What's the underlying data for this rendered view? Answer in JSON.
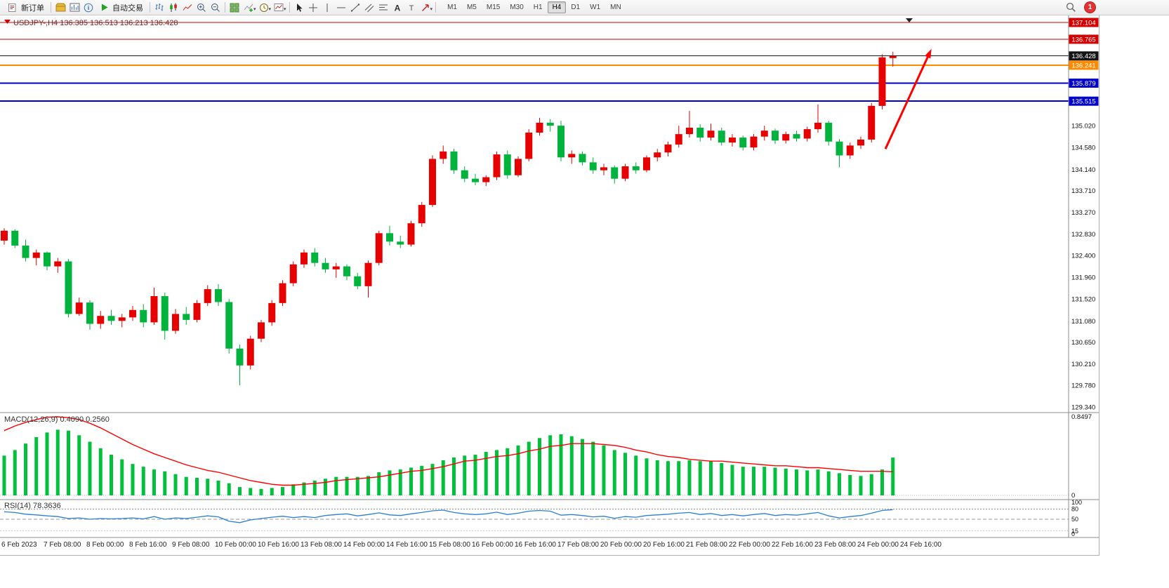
{
  "toolbar": {
    "new_order": "新订单",
    "auto_trading": "自动交易",
    "timeframes": [
      "M1",
      "M5",
      "M15",
      "M30",
      "H1",
      "H4",
      "D1",
      "W1",
      "MN"
    ],
    "active_timeframe": "H4",
    "notification_count": "1"
  },
  "chart_data": {
    "type": "candlestick",
    "symbol": "USDJPY-",
    "timeframe": "H4",
    "title_symbol": "USDJPY-,H4",
    "title_ohlc": "136.385 136.513 136.213 136.428",
    "bull_color": "#e60000",
    "bear_color": "#00b33c",
    "levels": [
      {
        "price": 137.104,
        "label": "137.104",
        "color": "#d40000",
        "width": 1
      },
      {
        "price": 136.765,
        "label": "136.765",
        "color": "#d40000",
        "width": 1
      },
      {
        "price": 136.428,
        "label": "136.428",
        "color": "#141414",
        "width": 1,
        "role": "current-price"
      },
      {
        "price": 136.241,
        "label": "136.241",
        "color": "#ff8a00",
        "width": 2
      },
      {
        "price": 135.879,
        "label": "135.879",
        "color": "#0000cc",
        "width": 2
      },
      {
        "price": 135.515,
        "label": "135.515",
        "color": "#0000cc",
        "width": 2
      }
    ],
    "price_axis_ticks": [
      "135.020",
      "134.580",
      "134.140",
      "133.710",
      "133.270",
      "132.830",
      "132.400",
      "131.960",
      "131.520",
      "131.080",
      "130.650",
      "130.210",
      "129.780",
      "129.340"
    ],
    "time_labels": [
      "6 Feb 2023",
      "7 Feb 08:00",
      "8 Feb 00:00",
      "8 Feb 16:00",
      "9 Feb 08:00",
      "10 Feb 00:00",
      "10 Feb 16:00",
      "13 Feb 08:00",
      "14 Feb 00:00",
      "14 Feb 16:00",
      "15 Feb 08:00",
      "16 Feb 00:00",
      "16 Feb 16:00",
      "17 Feb 08:00",
      "20 Feb 00:00",
      "20 Feb 16:00",
      "21 Feb 08:00",
      "22 Feb 00:00",
      "22 Feb 16:00",
      "23 Feb 08:00",
      "24 Feb 00:00",
      "24 Feb 16:00"
    ],
    "candles": [
      [
        132.7,
        132.95,
        132.62,
        132.9
      ],
      [
        132.9,
        132.93,
        132.55,
        132.6
      ],
      [
        132.6,
        132.72,
        132.28,
        132.35
      ],
      [
        132.35,
        132.52,
        132.2,
        132.46
      ],
      [
        132.46,
        132.48,
        132.1,
        132.18
      ],
      [
        132.18,
        132.35,
        132.05,
        132.28
      ],
      [
        132.28,
        132.33,
        131.15,
        131.22
      ],
      [
        131.22,
        131.55,
        131.18,
        131.45
      ],
      [
        131.45,
        131.5,
        130.9,
        131.02
      ],
      [
        131.02,
        131.28,
        130.92,
        131.18
      ],
      [
        131.18,
        131.3,
        131.0,
        131.08
      ],
      [
        131.08,
        131.22,
        130.95,
        131.15
      ],
      [
        131.15,
        131.38,
        131.08,
        131.3
      ],
      [
        131.3,
        131.42,
        130.95,
        131.05
      ],
      [
        131.05,
        131.75,
        131.0,
        131.58
      ],
      [
        131.58,
        131.65,
        130.7,
        130.88
      ],
      [
        130.88,
        131.32,
        130.82,
        131.22
      ],
      [
        131.22,
        131.36,
        131.0,
        131.1
      ],
      [
        131.1,
        131.5,
        131.05,
        131.44
      ],
      [
        131.44,
        131.8,
        131.38,
        131.72
      ],
      [
        131.72,
        131.82,
        131.38,
        131.46
      ],
      [
        131.46,
        131.52,
        130.42,
        130.52
      ],
      [
        130.52,
        130.6,
        129.78,
        130.18
      ],
      [
        130.18,
        130.78,
        130.1,
        130.72
      ],
      [
        130.72,
        131.1,
        130.65,
        131.05
      ],
      [
        131.05,
        131.5,
        130.98,
        131.44
      ],
      [
        131.44,
        131.9,
        131.38,
        131.84
      ],
      [
        131.84,
        132.28,
        131.78,
        132.22
      ],
      [
        132.22,
        132.52,
        132.15,
        132.46
      ],
      [
        132.46,
        132.55,
        132.18,
        132.25
      ],
      [
        132.25,
        132.35,
        132.05,
        132.12
      ],
      [
        132.12,
        132.25,
        131.95,
        132.18
      ],
      [
        132.18,
        132.22,
        131.9,
        131.98
      ],
      [
        131.98,
        132.05,
        131.72,
        131.78
      ],
      [
        131.78,
        132.3,
        131.55,
        132.25
      ],
      [
        132.25,
        132.9,
        132.2,
        132.85
      ],
      [
        132.85,
        133.0,
        132.6,
        132.68
      ],
      [
        132.68,
        132.8,
        132.55,
        132.62
      ],
      [
        132.62,
        133.1,
        132.58,
        133.05
      ],
      [
        133.05,
        133.48,
        132.98,
        133.42
      ],
      [
        133.42,
        134.42,
        133.38,
        134.35
      ],
      [
        134.35,
        134.62,
        134.25,
        134.5
      ],
      [
        134.5,
        134.55,
        134.05,
        134.12
      ],
      [
        134.12,
        134.2,
        133.88,
        133.95
      ],
      [
        133.95,
        134.05,
        133.82,
        133.88
      ],
      [
        133.88,
        134.02,
        133.8,
        133.98
      ],
      [
        133.98,
        134.5,
        133.92,
        134.44
      ],
      [
        134.44,
        134.52,
        133.95,
        134.02
      ],
      [
        134.02,
        134.4,
        133.98,
        134.35
      ],
      [
        134.35,
        134.95,
        134.3,
        134.88
      ],
      [
        134.88,
        135.18,
        134.82,
        135.08
      ],
      [
        135.08,
        135.15,
        134.9,
        135.02
      ],
      [
        135.02,
        135.12,
        134.3,
        134.38
      ],
      [
        134.38,
        134.52,
        134.25,
        134.45
      ],
      [
        134.45,
        134.5,
        134.22,
        134.28
      ],
      [
        134.28,
        134.38,
        134.05,
        134.12
      ],
      [
        134.12,
        134.25,
        134.02,
        134.18
      ],
      [
        134.18,
        134.22,
        133.85,
        133.95
      ],
      [
        133.95,
        134.25,
        133.9,
        134.2
      ],
      [
        134.2,
        134.28,
        134.05,
        134.12
      ],
      [
        134.12,
        134.42,
        134.08,
        134.38
      ],
      [
        134.38,
        134.55,
        134.3,
        134.48
      ],
      [
        134.48,
        134.7,
        134.4,
        134.64
      ],
      [
        134.64,
        135.02,
        134.58,
        134.85
      ],
      [
        134.85,
        135.32,
        134.78,
        134.98
      ],
      [
        134.98,
        135.05,
        134.7,
        134.78
      ],
      [
        134.78,
        135.06,
        134.72,
        134.92
      ],
      [
        134.92,
        134.98,
        134.62,
        134.68
      ],
      [
        134.68,
        134.85,
        134.6,
        134.78
      ],
      [
        134.78,
        134.82,
        134.52,
        134.58
      ],
      [
        134.58,
        134.85,
        134.52,
        134.8
      ],
      [
        134.8,
        135.02,
        134.72,
        134.92
      ],
      [
        134.92,
        134.96,
        134.65,
        134.72
      ],
      [
        134.72,
        134.9,
        134.66,
        134.85
      ],
      [
        134.85,
        134.92,
        134.7,
        134.76
      ],
      [
        134.76,
        135.0,
        134.7,
        134.95
      ],
      [
        134.95,
        135.45,
        134.88,
        135.08
      ],
      [
        135.08,
        135.12,
        134.62,
        134.7
      ],
      [
        134.7,
        134.75,
        134.18,
        134.42
      ],
      [
        134.42,
        134.68,
        134.35,
        134.62
      ],
      [
        134.62,
        134.8,
        134.55,
        134.74
      ],
      [
        134.74,
        135.48,
        134.68,
        135.42
      ],
      [
        135.42,
        136.46,
        135.35,
        136.4
      ],
      [
        136.385,
        136.513,
        136.213,
        136.428
      ]
    ],
    "indicators": {
      "macd": {
        "label": "MACD(12,26,9) 0.4090 0.2560",
        "scale_max": "0.8497",
        "scale_min": "0",
        "histogram_color": "#00c03c",
        "signal_color": "#ff0000",
        "histogram": [
          0.43,
          0.49,
          0.56,
          0.63,
          0.68,
          0.71,
          0.7,
          0.65,
          0.58,
          0.51,
          0.44,
          0.39,
          0.34,
          0.31,
          0.28,
          0.26,
          0.23,
          0.2,
          0.19,
          0.18,
          0.16,
          0.13,
          0.09,
          0.08,
          0.07,
          0.08,
          0.09,
          0.12,
          0.14,
          0.16,
          0.18,
          0.2,
          0.2,
          0.2,
          0.21,
          0.25,
          0.27,
          0.28,
          0.3,
          0.32,
          0.34,
          0.38,
          0.41,
          0.43,
          0.44,
          0.47,
          0.49,
          0.51,
          0.54,
          0.58,
          0.62,
          0.65,
          0.66,
          0.64,
          0.61,
          0.58,
          0.54,
          0.49,
          0.46,
          0.43,
          0.4,
          0.38,
          0.37,
          0.37,
          0.38,
          0.37,
          0.37,
          0.35,
          0.33,
          0.31,
          0.31,
          0.31,
          0.3,
          0.29,
          0.28,
          0.27,
          0.28,
          0.26,
          0.24,
          0.22,
          0.21,
          0.23,
          0.28,
          0.409
        ],
        "signal": [
          0.7,
          0.75,
          0.79,
          0.82,
          0.845,
          0.8497,
          0.84,
          0.82,
          0.78,
          0.73,
          0.67,
          0.61,
          0.55,
          0.5,
          0.45,
          0.41,
          0.37,
          0.33,
          0.3,
          0.27,
          0.25,
          0.22,
          0.19,
          0.16,
          0.14,
          0.12,
          0.11,
          0.11,
          0.12,
          0.13,
          0.14,
          0.16,
          0.17,
          0.18,
          0.19,
          0.2,
          0.22,
          0.24,
          0.26,
          0.27,
          0.29,
          0.31,
          0.34,
          0.37,
          0.38,
          0.4,
          0.42,
          0.43,
          0.45,
          0.48,
          0.5,
          0.53,
          0.54,
          0.56,
          0.56,
          0.56,
          0.55,
          0.54,
          0.52,
          0.49,
          0.47,
          0.44,
          0.42,
          0.41,
          0.39,
          0.38,
          0.37,
          0.37,
          0.36,
          0.35,
          0.34,
          0.33,
          0.32,
          0.32,
          0.31,
          0.3,
          0.3,
          0.29,
          0.28,
          0.27,
          0.26,
          0.26,
          0.26,
          0.256
        ]
      },
      "rsi": {
        "label": "RSI(14) 78.3636",
        "line_color": "#2a7fd4",
        "scale_marks": [
          "100",
          "80",
          "50",
          "15",
          "0"
        ],
        "levels": [
          80,
          50,
          15
        ],
        "values": [
          72,
          70,
          65,
          63,
          60,
          58,
          52,
          54,
          50,
          52,
          51,
          52,
          54,
          51,
          58,
          50,
          54,
          52,
          56,
          60,
          57,
          44,
          40,
          48,
          52,
          56,
          59,
          55,
          58,
          55,
          61,
          64,
          66,
          60,
          64,
          69,
          63,
          61,
          66,
          70,
          75,
          77,
          70,
          66,
          64,
          66,
          71,
          64,
          68,
          74,
          76,
          74,
          62,
          64,
          61,
          57,
          59,
          53,
          58,
          56,
          61,
          63,
          65,
          68,
          70,
          64,
          67,
          61,
          64,
          60,
          64,
          67,
          61,
          64,
          62,
          66,
          70,
          60,
          54,
          58,
          61,
          68,
          76,
          78.36
        ]
      }
    },
    "annotations": {
      "arrow": {
        "color": "#ff0000",
        "from": {
          "index": 82.3,
          "price": 134.55
        },
        "to": {
          "index": 86.6,
          "price": 136.57
        }
      }
    }
  }
}
